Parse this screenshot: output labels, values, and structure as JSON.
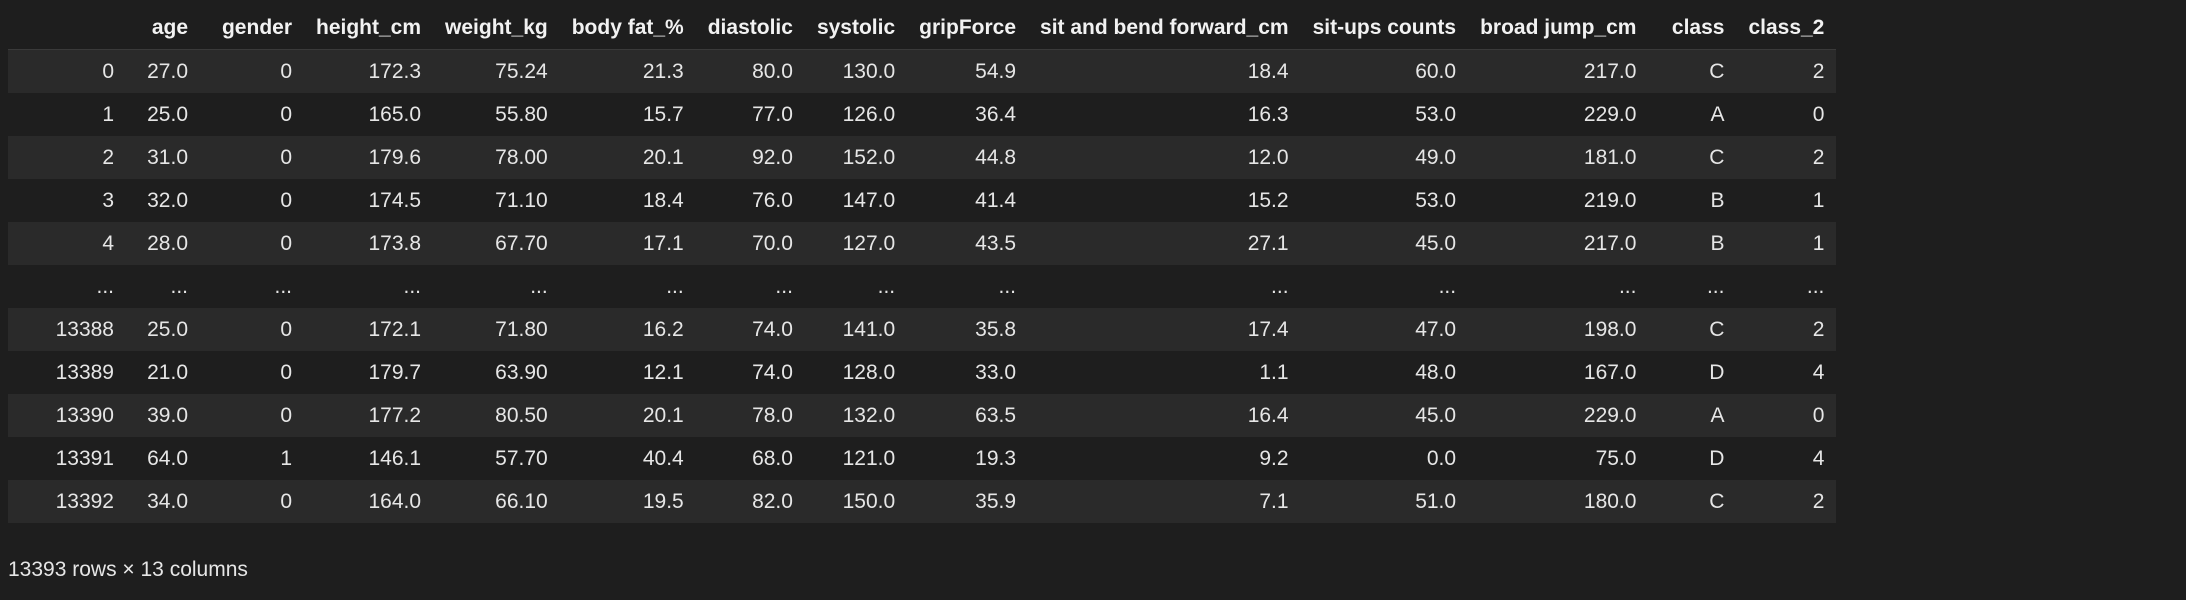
{
  "dataframe": {
    "columns": [
      "age",
      "gender",
      "height_cm",
      "weight_kg",
      "body fat_%",
      "diastolic",
      "systolic",
      "gripForce",
      "sit and bend forward_cm",
      "sit-ups counts",
      "broad jump_cm",
      "class",
      "class_2"
    ],
    "rows": [
      {
        "index": "0",
        "cells": [
          "27.0",
          "0",
          "172.3",
          "75.24",
          "21.3",
          "80.0",
          "130.0",
          "54.9",
          "18.4",
          "60.0",
          "217.0",
          "C",
          "2"
        ]
      },
      {
        "index": "1",
        "cells": [
          "25.0",
          "0",
          "165.0",
          "55.80",
          "15.7",
          "77.0",
          "126.0",
          "36.4",
          "16.3",
          "53.0",
          "229.0",
          "A",
          "0"
        ]
      },
      {
        "index": "2",
        "cells": [
          "31.0",
          "0",
          "179.6",
          "78.00",
          "20.1",
          "92.0",
          "152.0",
          "44.8",
          "12.0",
          "49.0",
          "181.0",
          "C",
          "2"
        ]
      },
      {
        "index": "3",
        "cells": [
          "32.0",
          "0",
          "174.5",
          "71.10",
          "18.4",
          "76.0",
          "147.0",
          "41.4",
          "15.2",
          "53.0",
          "219.0",
          "B",
          "1"
        ]
      },
      {
        "index": "4",
        "cells": [
          "28.0",
          "0",
          "173.8",
          "67.70",
          "17.1",
          "70.0",
          "127.0",
          "43.5",
          "27.1",
          "45.0",
          "217.0",
          "B",
          "1"
        ]
      },
      {
        "index": "...",
        "cells": [
          "...",
          "...",
          "...",
          "...",
          "...",
          "...",
          "...",
          "...",
          "...",
          "...",
          "...",
          "...",
          "..."
        ]
      },
      {
        "index": "13388",
        "cells": [
          "25.0",
          "0",
          "172.1",
          "71.80",
          "16.2",
          "74.0",
          "141.0",
          "35.8",
          "17.4",
          "47.0",
          "198.0",
          "C",
          "2"
        ]
      },
      {
        "index": "13389",
        "cells": [
          "21.0",
          "0",
          "179.7",
          "63.90",
          "12.1",
          "74.0",
          "128.0",
          "33.0",
          "1.1",
          "48.0",
          "167.0",
          "D",
          "4"
        ]
      },
      {
        "index": "13390",
        "cells": [
          "39.0",
          "0",
          "177.2",
          "80.50",
          "20.1",
          "78.0",
          "132.0",
          "63.5",
          "16.4",
          "45.0",
          "229.0",
          "A",
          "0"
        ]
      },
      {
        "index": "13391",
        "cells": [
          "64.0",
          "1",
          "146.1",
          "57.70",
          "40.4",
          "68.0",
          "121.0",
          "19.3",
          "9.2",
          "0.0",
          "75.0",
          "D",
          "4"
        ]
      },
      {
        "index": "13392",
        "cells": [
          "34.0",
          "0",
          "164.0",
          "66.10",
          "19.5",
          "82.0",
          "150.0",
          "35.9",
          "7.1",
          "51.0",
          "180.0",
          "C",
          "2"
        ]
      }
    ],
    "shape_text": "13393 rows × 13 columns"
  },
  "colors": {
    "background": "#1e1e1e",
    "stripe": "#2a2a2a",
    "text": "#e6e6e6"
  }
}
